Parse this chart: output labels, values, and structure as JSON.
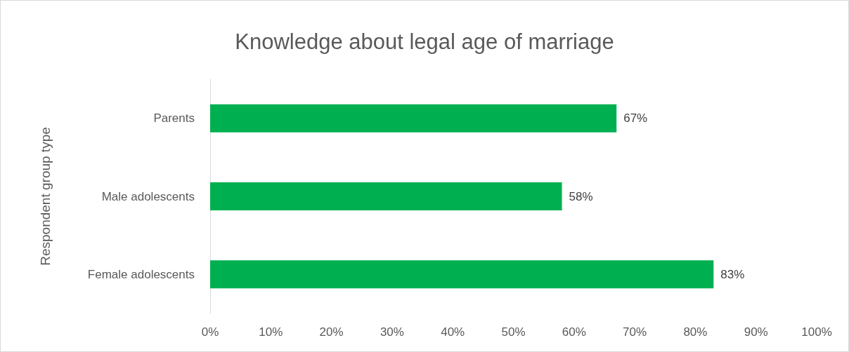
{
  "chart_data": {
    "type": "bar",
    "orientation": "horizontal",
    "title": "Knowledge about legal age of marriage",
    "ylabel": "Respondent group type",
    "categories": [
      "Parents",
      "Male adolescents",
      "Female adolescents"
    ],
    "values": [
      67,
      58,
      83
    ],
    "color": "#00b050",
    "value_labels": [
      "67%",
      "58%",
      "83%"
    ],
    "xlim": [
      0,
      100
    ],
    "xticks": [
      {
        "value": 0,
        "label": "0%"
      },
      {
        "value": 10,
        "label": "10%"
      },
      {
        "value": 20,
        "label": "20%"
      },
      {
        "value": 30,
        "label": "30%"
      },
      {
        "value": 40,
        "label": "40%"
      },
      {
        "value": 50,
        "label": "50%"
      },
      {
        "value": 60,
        "label": "60%"
      },
      {
        "value": 70,
        "label": "70%"
      },
      {
        "value": 80,
        "label": "80%"
      },
      {
        "value": 90,
        "label": "90%"
      },
      {
        "value": 100,
        "label": "100%"
      }
    ],
    "grid": false
  }
}
